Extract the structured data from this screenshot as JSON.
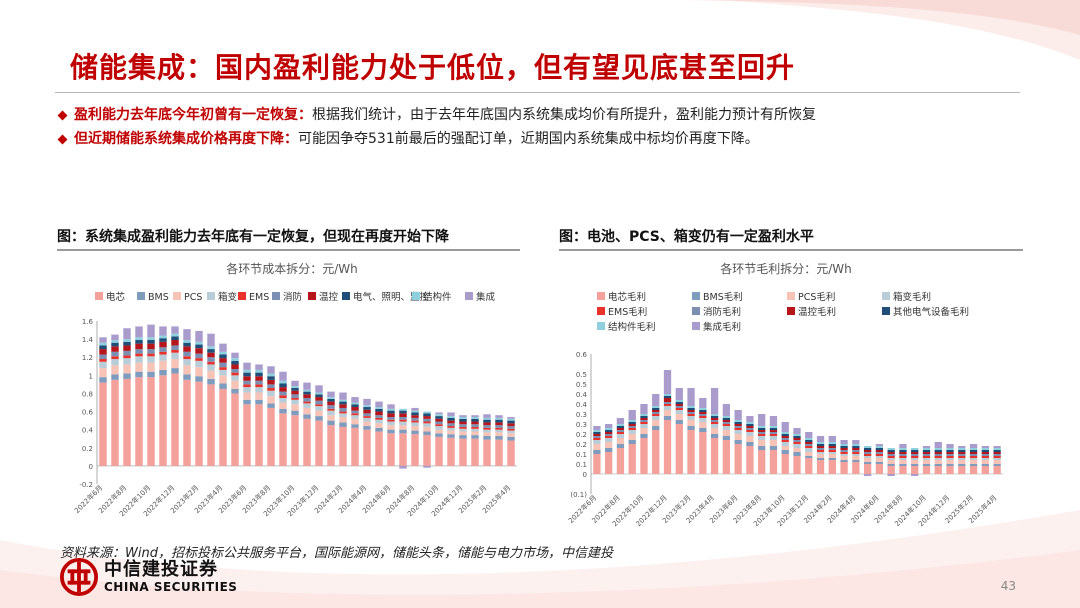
{
  "page": {
    "title": "储能集成：国内盈利能力处于低位，但有望见底甚至回升",
    "page_number": "43"
  },
  "bullets": [
    {
      "bold": "盈利能力去年底今年初曾有一定恢复：",
      "text": "根据我们统计，由于去年年底国内系统集成均价有所提升，盈利能力预计有所恢复"
    },
    {
      "bold": "但近期储能系统集成价格再度下降：",
      "text": "可能因争夺531前最后的强配订单，近期国内系统集成中标均价再度下降。"
    }
  ],
  "source": "资料来源：Wind，招标投标公共服务平台，国际能源网，储能头条，储能与电力市场，中信建投",
  "logo": {
    "cn": "中信建投证券",
    "en": "CHINA SECURITIES"
  },
  "colors": {
    "brand_red": "#c00000"
  },
  "chart_data": [
    {
      "type": "bar",
      "stacked": true,
      "figure_title": "图：系统集成盈利能力去年底有一定恢复，但现在再度开始下降",
      "title": "各环节成本拆分：元/Wh",
      "ylim": [
        -0.2,
        1.6
      ],
      "yticks": [
        "-0.2",
        "0",
        "0.2",
        "0.4",
        "0.6",
        "0.8",
        "1",
        "1.2",
        "1.4",
        "1.6"
      ],
      "ytick_values": [
        -0.2,
        0,
        0.2,
        0.4,
        0.6,
        0.8,
        1.0,
        1.2,
        1.4,
        1.6
      ],
      "tick_labels": [
        "2022年6月",
        "2022年8月",
        "2022年10月",
        "2022年12月",
        "2023年2月",
        "2023年4月",
        "2023年6月",
        "2023年8月",
        "2023年10月",
        "2023年12月",
        "2024年2月",
        "2024年4月",
        "2024年6月",
        "2024年8月",
        "2024年10月",
        "2024年12月",
        "2025年2月",
        "2025年4月"
      ],
      "x": [
        "2022年6月",
        "2022年7月",
        "2022年8月",
        "2022年9月",
        "2022年10月",
        "2022年11月",
        "2022年12月",
        "2023年1月",
        "2023年2月",
        "2023年3月",
        "2023年4月",
        "2023年5月",
        "2023年6月",
        "2023年7月",
        "2023年8月",
        "2023年9月",
        "2023年10月",
        "2023年11月",
        "2023年12月",
        "2024年1月",
        "2024年2月",
        "2024年3月",
        "2024年4月",
        "2024年5月",
        "2024年6月",
        "2024年7月",
        "2024年8月",
        "2024年9月",
        "2024年10月",
        "2024年11月",
        "2024年12月",
        "2025年1月",
        "2025年2月",
        "2025年3月",
        "2025年4月"
      ],
      "legend_position": "top",
      "series": [
        {
          "name": "电芯",
          "color": "#f4a09b",
          "values": [
            0.92,
            0.95,
            0.96,
            0.98,
            0.98,
            1.0,
            1.02,
            0.95,
            0.93,
            0.9,
            0.85,
            0.8,
            0.68,
            0.68,
            0.64,
            0.58,
            0.56,
            0.52,
            0.5,
            0.45,
            0.43,
            0.42,
            0.4,
            0.38,
            0.36,
            0.36,
            0.35,
            0.34,
            0.32,
            0.31,
            0.3,
            0.3,
            0.29,
            0.29,
            0.28
          ]
        },
        {
          "name": "BMS",
          "color": "#7f9cbf",
          "values": [
            0.06,
            0.06,
            0.06,
            0.06,
            0.06,
            0.06,
            0.06,
            0.06,
            0.06,
            0.06,
            0.06,
            0.05,
            0.05,
            0.05,
            0.05,
            0.05,
            0.05,
            0.05,
            0.05,
            0.05,
            0.05,
            0.04,
            0.04,
            0.04,
            0.04,
            0.04,
            0.04,
            0.04,
            0.04,
            0.04,
            0.04,
            0.04,
            0.04,
            0.04,
            0.04
          ]
        },
        {
          "name": "PCS",
          "color": "#f7c3b6",
          "values": [
            0.1,
            0.1,
            0.1,
            0.1,
            0.1,
            0.1,
            0.1,
            0.1,
            0.1,
            0.09,
            0.09,
            0.09,
            0.08,
            0.08,
            0.08,
            0.07,
            0.07,
            0.07,
            0.06,
            0.06,
            0.06,
            0.06,
            0.05,
            0.05,
            0.05,
            0.05,
            0.05,
            0.05,
            0.04,
            0.04,
            0.04,
            0.04,
            0.04,
            0.04,
            0.04
          ]
        },
        {
          "name": "箱变",
          "color": "#b9cdd8",
          "values": [
            0.07,
            0.07,
            0.07,
            0.07,
            0.07,
            0.07,
            0.07,
            0.07,
            0.07,
            0.07,
            0.06,
            0.06,
            0.06,
            0.06,
            0.06,
            0.05,
            0.05,
            0.05,
            0.05,
            0.05,
            0.04,
            0.04,
            0.04,
            0.04,
            0.04,
            0.04,
            0.04,
            0.04,
            0.04,
            0.03,
            0.03,
            0.03,
            0.03,
            0.03,
            0.03
          ]
        },
        {
          "name": "EMS",
          "color": "#e8322b",
          "values": [
            0.03,
            0.03,
            0.03,
            0.03,
            0.03,
            0.03,
            0.03,
            0.03,
            0.03,
            0.03,
            0.03,
            0.03,
            0.03,
            0.03,
            0.03,
            0.03,
            0.02,
            0.02,
            0.02,
            0.02,
            0.02,
            0.02,
            0.02,
            0.02,
            0.02,
            0.02,
            0.02,
            0.02,
            0.02,
            0.02,
            0.02,
            0.02,
            0.02,
            0.02,
            0.02
          ]
        },
        {
          "name": "消防",
          "color": "#7a8fb1",
          "values": [
            0.05,
            0.05,
            0.05,
            0.05,
            0.05,
            0.05,
            0.05,
            0.05,
            0.05,
            0.05,
            0.05,
            0.04,
            0.04,
            0.04,
            0.04,
            0.04,
            0.04,
            0.04,
            0.04,
            0.04,
            0.04,
            0.03,
            0.03,
            0.03,
            0.03,
            0.03,
            0.03,
            0.03,
            0.03,
            0.03,
            0.03,
            0.03,
            0.03,
            0.03,
            0.03
          ]
        },
        {
          "name": "温控",
          "color": "#b5151b",
          "values": [
            0.06,
            0.06,
            0.06,
            0.06,
            0.06,
            0.06,
            0.06,
            0.06,
            0.06,
            0.05,
            0.05,
            0.05,
            0.05,
            0.05,
            0.05,
            0.05,
            0.04,
            0.04,
            0.04,
            0.04,
            0.04,
            0.04,
            0.04,
            0.04,
            0.04,
            0.04,
            0.03,
            0.03,
            0.03,
            0.03,
            0.03,
            0.03,
            0.03,
            0.03,
            0.03
          ]
        },
        {
          "name": "电气、照明、监控",
          "color": "#1f4e79",
          "values": [
            0.04,
            0.04,
            0.04,
            0.04,
            0.04,
            0.04,
            0.04,
            0.04,
            0.04,
            0.04,
            0.04,
            0.04,
            0.04,
            0.04,
            0.04,
            0.04,
            0.03,
            0.03,
            0.03,
            0.03,
            0.03,
            0.03,
            0.03,
            0.03,
            0.03,
            0.03,
            0.03,
            0.03,
            0.03,
            0.03,
            0.03,
            0.03,
            0.03,
            0.03,
            0.03
          ]
        },
        {
          "name": "结构件",
          "color": "#8fd0de",
          "values": [
            0.03,
            0.03,
            0.03,
            0.03,
            0.03,
            0.03,
            0.03,
            0.03,
            0.03,
            0.03,
            0.03,
            0.03,
            0.03,
            0.03,
            0.03,
            0.03,
            0.02,
            0.02,
            0.02,
            0.02,
            0.02,
            0.02,
            0.02,
            0.02,
            0.02,
            0.02,
            0.02,
            0.02,
            0.02,
            0.02,
            0.02,
            0.02,
            0.02,
            0.02,
            0.02
          ]
        },
        {
          "name": "集成",
          "color": "#a99ccd",
          "values": [
            0.06,
            0.06,
            0.12,
            0.12,
            0.14,
            0.1,
            0.08,
            0.12,
            0.12,
            0.14,
            0.09,
            0.06,
            0.08,
            0.06,
            0.08,
            0.1,
            0.06,
            0.08,
            0.08,
            0.06,
            0.08,
            0.06,
            0.07,
            0.06,
            0.05,
            -0.03,
            0.03,
            -0.02,
            0.02,
            0.04,
            0.02,
            0.02,
            0.04,
            0.03,
            0.02
          ]
        }
      ]
    },
    {
      "type": "bar",
      "stacked": true,
      "figure_title": "图：电池、PCS、箱变仍有一定盈利水平",
      "title": "各环节毛利拆分：元/Wh",
      "ylim": [
        -0.1,
        0.6
      ],
      "yticks": [
        "(0.1)",
        "0",
        "0.1",
        "0.1",
        "0.2",
        "0.2",
        "0.3",
        "0.3",
        "0.4",
        "0.4",
        "0.5",
        "0.5",
        "0.6"
      ],
      "ytick_values": [
        -0.1,
        0,
        0.05,
        0.1,
        0.15,
        0.2,
        0.25,
        0.3,
        0.35,
        0.4,
        0.45,
        0.5,
        0.6
      ],
      "tick_labels": [
        "2022年6月",
        "2022年8月",
        "2022年10月",
        "2022年12月",
        "2023年2月",
        "2023年4月",
        "2023年6月",
        "2023年8月",
        "2023年10月",
        "2023年12月",
        "2024年2月",
        "2024年4月",
        "2024年6月",
        "2024年8月",
        "2024年10月",
        "2024年12月",
        "2025年2月",
        "2025年4月"
      ],
      "x": [
        "2022年6月",
        "2022年7月",
        "2022年8月",
        "2022年9月",
        "2022年10月",
        "2022年11月",
        "2022年12月",
        "2023年1月",
        "2023年2月",
        "2023年3月",
        "2023年4月",
        "2023年5月",
        "2023年6月",
        "2023年7月",
        "2023年8月",
        "2023年9月",
        "2023年10月",
        "2023年11月",
        "2023年12月",
        "2024年1月",
        "2024年2月",
        "2024年3月",
        "2024年4月",
        "2024年5月",
        "2024年6月",
        "2024年7月",
        "2024年8月",
        "2024年9月",
        "2024年10月",
        "2024年11月",
        "2024年12月",
        "2025年1月",
        "2025年2月",
        "2025年3月",
        "2025年4月"
      ],
      "legend_position": "top",
      "series": [
        {
          "name": "电芯毛利",
          "color": "#f4a09b",
          "values": [
            0.1,
            0.11,
            0.13,
            0.15,
            0.18,
            0.22,
            0.27,
            0.25,
            0.22,
            0.21,
            0.18,
            0.17,
            0.15,
            0.14,
            0.12,
            0.12,
            0.1,
            0.09,
            0.08,
            0.07,
            0.07,
            0.06,
            0.06,
            0.05,
            0.05,
            0.04,
            0.04,
            0.04,
            0.04,
            0.04,
            0.04,
            0.04,
            0.04,
            0.04,
            0.04
          ]
        },
        {
          "name": "BMS毛利",
          "color": "#7f9cbf",
          "values": [
            0.02,
            0.02,
            0.02,
            0.02,
            0.02,
            0.02,
            0.02,
            0.02,
            0.02,
            0.02,
            0.02,
            0.02,
            0.02,
            0.02,
            0.02,
            0.02,
            0.02,
            0.02,
            0.01,
            0.01,
            0.01,
            0.01,
            0.01,
            0.01,
            0.01,
            0.01,
            0.01,
            0.01,
            0.01,
            0.01,
            0.01,
            0.01,
            0.01,
            0.01,
            0.01
          ]
        },
        {
          "name": "PCS毛利",
          "color": "#f7c3b6",
          "values": [
            0.03,
            0.03,
            0.03,
            0.03,
            0.03,
            0.03,
            0.03,
            0.03,
            0.03,
            0.03,
            0.03,
            0.03,
            0.03,
            0.03,
            0.03,
            0.03,
            0.02,
            0.02,
            0.02,
            0.02,
            0.02,
            0.02,
            0.02,
            0.02,
            0.02,
            0.02,
            0.02,
            0.02,
            0.02,
            0.02,
            0.02,
            0.02,
            0.02,
            0.02,
            0.02
          ]
        },
        {
          "name": "箱变毛利",
          "color": "#b9cdd8",
          "values": [
            0.02,
            0.02,
            0.02,
            0.02,
            0.02,
            0.02,
            0.02,
            0.02,
            0.02,
            0.02,
            0.02,
            0.02,
            0.02,
            0.02,
            0.02,
            0.02,
            0.02,
            0.02,
            0.02,
            0.01,
            0.01,
            0.01,
            0.01,
            0.01,
            0.01,
            0.01,
            0.01,
            0.01,
            0.01,
            0.01,
            0.01,
            0.01,
            0.01,
            0.01,
            0.01
          ]
        },
        {
          "name": "EMS毛利",
          "color": "#e8322b",
          "values": [
            0.01,
            0.01,
            0.01,
            0.01,
            0.01,
            0.01,
            0.01,
            0.01,
            0.01,
            0.01,
            0.01,
            0.01,
            0.01,
            0.01,
            0.01,
            0.01,
            0.01,
            0.01,
            0.01,
            0.01,
            0.01,
            0.01,
            0.01,
            0.01,
            0.01,
            0.01,
            0.01,
            0.01,
            0.01,
            0.01,
            0.01,
            0.01,
            0.01,
            0.01,
            0.01
          ]
        },
        {
          "name": "消防毛利",
          "color": "#7a8fb1",
          "values": [
            0.01,
            0.01,
            0.01,
            0.01,
            0.01,
            0.01,
            0.01,
            0.01,
            0.01,
            0.01,
            0.01,
            0.01,
            0.01,
            0.01,
            0.01,
            0.01,
            0.01,
            0.01,
            0.01,
            0.01,
            0.01,
            0.01,
            0.01,
            0.01,
            0.01,
            0.01,
            0.01,
            0.01,
            0.01,
            0.01,
            0.01,
            0.01,
            0.01,
            0.01,
            0.01
          ]
        },
        {
          "name": "温控毛利",
          "color": "#b5151b",
          "values": [
            0.01,
            0.01,
            0.01,
            0.01,
            0.01,
            0.01,
            0.02,
            0.01,
            0.01,
            0.01,
            0.01,
            0.01,
            0.01,
            0.01,
            0.01,
            0.01,
            0.01,
            0.01,
            0.01,
            0.01,
            0.01,
            0.01,
            0.01,
            0.01,
            0.01,
            0.01,
            0.01,
            0.01,
            0.01,
            0.01,
            0.01,
            0.01,
            0.01,
            0.01,
            0.01
          ]
        },
        {
          "name": "其他电气设备毛利",
          "color": "#1f4e79",
          "values": [
            0.01,
            0.01,
            0.01,
            0.01,
            0.01,
            0.01,
            0.01,
            0.01,
            0.01,
            0.01,
            0.01,
            0.01,
            0.01,
            0.01,
            0.01,
            0.01,
            0.01,
            0.01,
            0.01,
            0.01,
            0.01,
            0.01,
            0.01,
            0.01,
            0.01,
            0.01,
            0.01,
            0.01,
            0.01,
            0.01,
            0.01,
            0.01,
            0.01,
            0.01,
            0.01
          ]
        },
        {
          "name": "结构件毛利",
          "color": "#8fd0de",
          "values": [
            0.01,
            0.01,
            0.01,
            0.01,
            0.01,
            0.01,
            0.01,
            0.01,
            0.01,
            0.01,
            0.01,
            0.01,
            0.01,
            0.01,
            0.01,
            0.01,
            0.01,
            0.01,
            0.01,
            0.01,
            0.01,
            0.01,
            0.01,
            0.01,
            0.01,
            0.01,
            0.01,
            0.01,
            0.01,
            0.01,
            0.01,
            0.01,
            0.01,
            0.01,
            0.01
          ]
        },
        {
          "name": "集成毛利",
          "color": "#a99ccd",
          "values": [
            0.02,
            0.02,
            0.03,
            0.05,
            0.05,
            0.06,
            0.12,
            0.06,
            0.09,
            0.05,
            0.13,
            0.06,
            0.05,
            0.03,
            0.06,
            0.05,
            0.05,
            0.03,
            0.03,
            0.03,
            0.03,
            0.02,
            0.02,
            -0.01,
            0.01,
            -0.01,
            0.02,
            -0.01,
            0.01,
            0.03,
            0.02,
            0.01,
            0.02,
            0.01,
            0.01
          ]
        }
      ]
    }
  ]
}
